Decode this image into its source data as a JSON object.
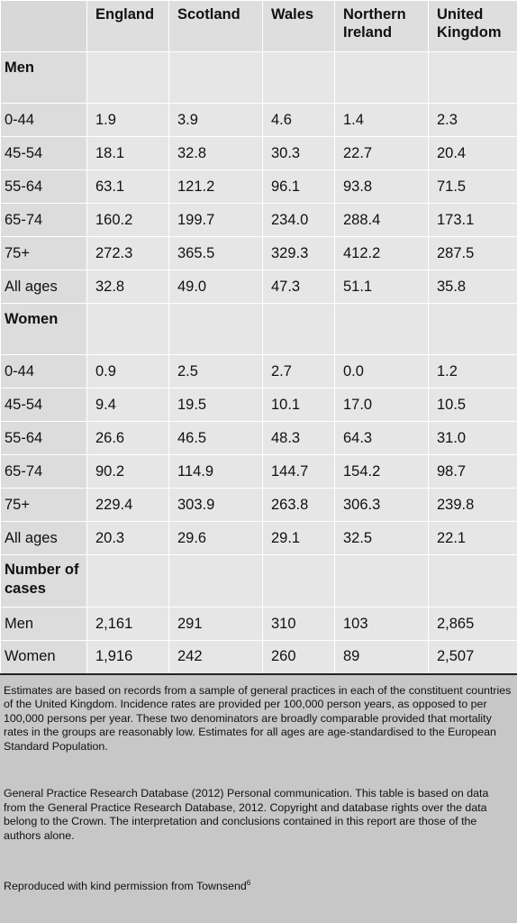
{
  "columns": [
    "England",
    "Scotland",
    "Wales",
    "Northern Ireland",
    "United Kingdom"
  ],
  "sections": [
    {
      "title": "Men",
      "rows": [
        {
          "label": "0-44",
          "values": [
            "1.9",
            "3.9",
            "4.6",
            "1.4",
            "2.3"
          ]
        },
        {
          "label": "45-54",
          "values": [
            "18.1",
            "32.8",
            "30.3",
            "22.7",
            "20.4"
          ]
        },
        {
          "label": "55-64",
          "values": [
            "63.1",
            "121.2",
            "96.1",
            "93.8",
            "71.5"
          ]
        },
        {
          "label": "65-74",
          "values": [
            "160.2",
            "199.7",
            "234.0",
            "288.4",
            "173.1"
          ]
        },
        {
          "label": "75+",
          "values": [
            "272.3",
            "365.5",
            "329.3",
            "412.2",
            "287.5"
          ]
        },
        {
          "label": "All ages",
          "values": [
            "32.8",
            "49.0",
            "47.3",
            "51.1",
            "35.8"
          ]
        }
      ]
    },
    {
      "title": "Women",
      "rows": [
        {
          "label": "0-44",
          "values": [
            "0.9",
            "2.5",
            "2.7",
            "0.0",
            "1.2"
          ]
        },
        {
          "label": "45-54",
          "values": [
            "9.4",
            "19.5",
            "10.1",
            "17.0",
            "10.5"
          ]
        },
        {
          "label": "55-64",
          "values": [
            "26.6",
            "46.5",
            "48.3",
            "64.3",
            "31.0"
          ]
        },
        {
          "label": "65-74",
          "values": [
            "90.2",
            "114.9",
            "144.7",
            "154.2",
            "98.7"
          ]
        },
        {
          "label": "75+",
          "values": [
            "229.4",
            "303.9",
            "263.8",
            "306.3",
            "239.8"
          ]
        },
        {
          "label": "All ages",
          "values": [
            "20.3",
            "29.6",
            "29.1",
            "32.5",
            "22.1"
          ]
        }
      ]
    },
    {
      "title": "Number of cases",
      "rows": [
        {
          "label": "Men",
          "values": [
            "2,161",
            "291",
            "310",
            "103",
            "2,865"
          ]
        },
        {
          "label": "Women",
          "values": [
            "1,916",
            "242",
            "260",
            "89",
            "2,507"
          ]
        }
      ]
    }
  ],
  "notes": {
    "estimates": "Estimates are based on records from a sample of general practices in each of the constituent countries of the United Kingdom. Incidence rates are provided per 100,000 person years, as opposed to per 100,000 persons per year. These two denominators are broadly comparable provided that mortality rates in the groups are reasonably low. Estimates for all ages are age-standardised to the European Standard Population.",
    "source": "General Practice Research Database (2012) Personal communication. This table is based on data from the General Practice Research Database, 2012. Copyright and database rights over the data belong to the Crown. The interpretation and conclusions contained in this report are those of the authors alone.",
    "permission": "Reproduced with kind permission from Townsend",
    "permission_ref": "6"
  }
}
